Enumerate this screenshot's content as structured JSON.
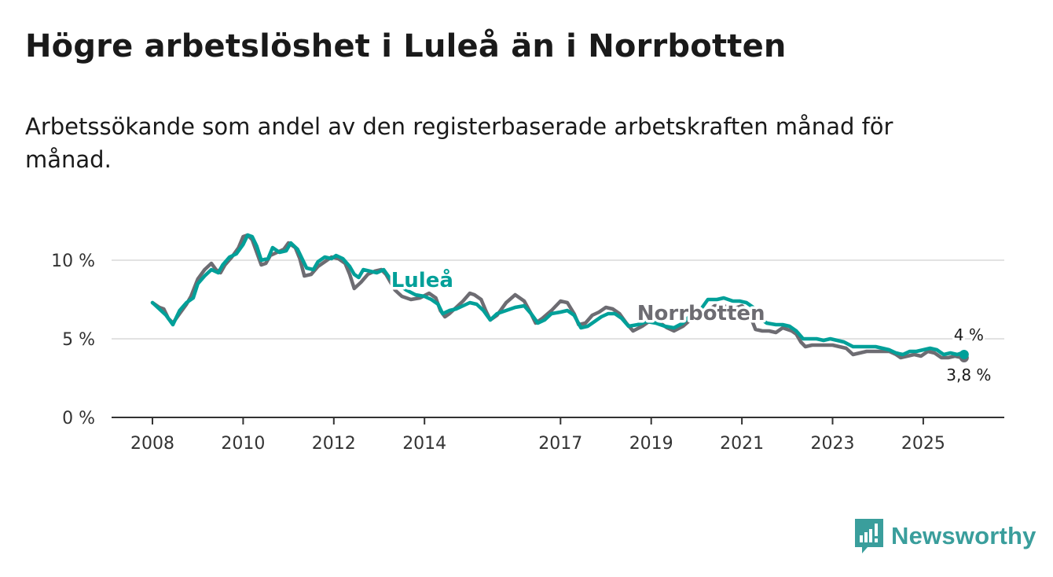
{
  "title": "Högre arbetslöshet i Luleå än i Norrbotten",
  "subtitle": "Arbetssökande som andel av den registerbaserade arbetskraften månad för månad.",
  "brand": {
    "name": "Newsworthy",
    "icon": "newsworthy-logo-icon",
    "color": "#3a9e9c"
  },
  "chart_data": {
    "type": "line",
    "title": "Högre arbetslöshet i Luleå än i Norrbotten",
    "xlabel": "",
    "ylabel": "",
    "xlim": [
      2008,
      2026.1
    ],
    "ylim": [
      0,
      11.5
    ],
    "y_ticks": [
      {
        "value": 0,
        "label": "0 %"
      },
      {
        "value": 5,
        "label": "5 %"
      },
      {
        "value": 10,
        "label": "10 %"
      }
    ],
    "x_ticks": [
      {
        "value": 2008,
        "label": "2008"
      },
      {
        "value": 2010,
        "label": "2010"
      },
      {
        "value": 2012,
        "label": "2012"
      },
      {
        "value": 2014,
        "label": "2014"
      },
      {
        "value": 2017,
        "label": "2017"
      },
      {
        "value": 2019,
        "label": "2019"
      },
      {
        "value": 2021,
        "label": "2021"
      },
      {
        "value": 2023,
        "label": "2023"
      },
      {
        "value": 2025,
        "label": "2025"
      }
    ],
    "grid": true,
    "series": [
      {
        "name": "Norrbotten",
        "color": "#6d6c72",
        "end_label": "3,8 %",
        "points": [
          [
            2008.0,
            7.3
          ],
          [
            2008.15,
            7.0
          ],
          [
            2008.25,
            6.9
          ],
          [
            2008.35,
            6.3
          ],
          [
            2008.45,
            6.0
          ],
          [
            2008.6,
            6.6
          ],
          [
            2008.75,
            7.2
          ],
          [
            2008.85,
            7.7
          ],
          [
            2009.0,
            8.8
          ],
          [
            2009.15,
            9.4
          ],
          [
            2009.3,
            9.8
          ],
          [
            2009.4,
            9.4
          ],
          [
            2009.5,
            9.2
          ],
          [
            2009.6,
            9.7
          ],
          [
            2009.75,
            10.2
          ],
          [
            2009.9,
            10.8
          ],
          [
            2010.0,
            11.5
          ],
          [
            2010.1,
            11.6
          ],
          [
            2010.2,
            11.3
          ],
          [
            2010.3,
            10.5
          ],
          [
            2010.4,
            9.7
          ],
          [
            2010.5,
            9.8
          ],
          [
            2010.6,
            10.3
          ],
          [
            2010.75,
            10.5
          ],
          [
            2010.9,
            10.7
          ],
          [
            2011.0,
            11.1
          ],
          [
            2011.15,
            10.8
          ],
          [
            2011.25,
            10.1
          ],
          [
            2011.35,
            9.0
          ],
          [
            2011.5,
            9.1
          ],
          [
            2011.65,
            9.6
          ],
          [
            2011.8,
            9.9
          ],
          [
            2011.95,
            10.2
          ],
          [
            2012.1,
            10.1
          ],
          [
            2012.25,
            9.8
          ],
          [
            2012.35,
            9.1
          ],
          [
            2012.45,
            8.2
          ],
          [
            2012.6,
            8.6
          ],
          [
            2012.75,
            9.1
          ],
          [
            2012.9,
            9.3
          ],
          [
            2013.05,
            9.4
          ],
          [
            2013.15,
            9.1
          ],
          [
            2013.35,
            8.1
          ],
          [
            2013.5,
            7.7
          ],
          [
            2013.7,
            7.5
          ],
          [
            2013.9,
            7.6
          ],
          [
            2014.1,
            7.9
          ],
          [
            2014.25,
            7.6
          ],
          [
            2014.35,
            6.8
          ],
          [
            2014.45,
            6.4
          ],
          [
            2014.55,
            6.6
          ],
          [
            2014.7,
            7.0
          ],
          [
            2014.85,
            7.4
          ],
          [
            2015.0,
            7.9
          ],
          [
            2015.1,
            7.8
          ],
          [
            2015.25,
            7.5
          ],
          [
            2015.35,
            6.8
          ],
          [
            2015.45,
            6.2
          ],
          [
            2015.6,
            6.5
          ],
          [
            2015.8,
            7.3
          ],
          [
            2016.0,
            7.8
          ],
          [
            2016.2,
            7.4
          ],
          [
            2016.35,
            6.6
          ],
          [
            2016.45,
            6.0
          ],
          [
            2016.6,
            6.3
          ],
          [
            2016.8,
            6.8
          ],
          [
            2017.0,
            7.4
          ],
          [
            2017.15,
            7.3
          ],
          [
            2017.3,
            6.6
          ],
          [
            2017.4,
            5.9
          ],
          [
            2017.55,
            6.0
          ],
          [
            2017.7,
            6.5
          ],
          [
            2017.85,
            6.7
          ],
          [
            2018.0,
            7.0
          ],
          [
            2018.15,
            6.9
          ],
          [
            2018.3,
            6.6
          ],
          [
            2018.45,
            6.0
          ],
          [
            2018.6,
            5.5
          ],
          [
            2018.8,
            5.8
          ],
          [
            2019.0,
            6.2
          ],
          [
            2019.2,
            6.0
          ],
          [
            2019.35,
            5.7
          ],
          [
            2019.5,
            5.5
          ],
          [
            2019.7,
            5.8
          ],
          [
            2019.9,
            6.3
          ],
          [
            2020.1,
            6.5
          ],
          [
            2020.25,
            6.8
          ],
          [
            2020.4,
            7.1
          ],
          [
            2020.6,
            7.1
          ],
          [
            2020.8,
            6.9
          ],
          [
            2021.0,
            7.1
          ],
          [
            2021.15,
            6.7
          ],
          [
            2021.3,
            5.6
          ],
          [
            2021.45,
            5.5
          ],
          [
            2021.6,
            5.5
          ],
          [
            2021.75,
            5.4
          ],
          [
            2021.9,
            5.7
          ],
          [
            2022.1,
            5.5
          ],
          [
            2022.2,
            5.3
          ],
          [
            2022.3,
            4.8
          ],
          [
            2022.4,
            4.5
          ],
          [
            2022.55,
            4.6
          ],
          [
            2022.7,
            4.6
          ],
          [
            2022.85,
            4.6
          ],
          [
            2023.0,
            4.6
          ],
          [
            2023.15,
            4.5
          ],
          [
            2023.3,
            4.4
          ],
          [
            2023.45,
            4.0
          ],
          [
            2023.6,
            4.1
          ],
          [
            2023.75,
            4.2
          ],
          [
            2023.9,
            4.2
          ],
          [
            2024.1,
            4.2
          ],
          [
            2024.25,
            4.2
          ],
          [
            2024.4,
            4.0
          ],
          [
            2024.5,
            3.8
          ],
          [
            2024.65,
            3.9
          ],
          [
            2024.8,
            4.0
          ],
          [
            2024.95,
            3.9
          ],
          [
            2025.1,
            4.2
          ],
          [
            2025.25,
            4.1
          ],
          [
            2025.4,
            3.8
          ],
          [
            2025.55,
            3.8
          ],
          [
            2025.7,
            3.9
          ],
          [
            2025.85,
            3.8
          ],
          [
            2025.9,
            3.8
          ]
        ]
      },
      {
        "name": "Luleå",
        "color": "#00a099",
        "end_label": "4 %",
        "points": [
          [
            2008.0,
            7.3
          ],
          [
            2008.15,
            6.9
          ],
          [
            2008.3,
            6.5
          ],
          [
            2008.45,
            5.9
          ],
          [
            2008.6,
            6.8
          ],
          [
            2008.75,
            7.3
          ],
          [
            2008.9,
            7.6
          ],
          [
            2009.0,
            8.5
          ],
          [
            2009.15,
            9.0
          ],
          [
            2009.3,
            9.4
          ],
          [
            2009.45,
            9.2
          ],
          [
            2009.55,
            9.7
          ],
          [
            2009.7,
            10.2
          ],
          [
            2009.85,
            10.4
          ],
          [
            2010.0,
            11.0
          ],
          [
            2010.1,
            11.6
          ],
          [
            2010.2,
            11.5
          ],
          [
            2010.3,
            10.9
          ],
          [
            2010.4,
            10.0
          ],
          [
            2010.55,
            10.1
          ],
          [
            2010.65,
            10.8
          ],
          [
            2010.8,
            10.5
          ],
          [
            2010.95,
            10.6
          ],
          [
            2011.05,
            11.1
          ],
          [
            2011.2,
            10.7
          ],
          [
            2011.3,
            10.1
          ],
          [
            2011.4,
            9.5
          ],
          [
            2011.55,
            9.4
          ],
          [
            2011.65,
            9.9
          ],
          [
            2011.8,
            10.2
          ],
          [
            2011.95,
            10.1
          ],
          [
            2012.05,
            10.3
          ],
          [
            2012.2,
            10.1
          ],
          [
            2012.35,
            9.6
          ],
          [
            2012.45,
            9.1
          ],
          [
            2012.55,
            8.9
          ],
          [
            2012.65,
            9.4
          ],
          [
            2012.8,
            9.3
          ],
          [
            2012.95,
            9.2
          ],
          [
            2013.1,
            9.4
          ],
          [
            2013.25,
            8.8
          ],
          [
            2013.4,
            8.5
          ],
          [
            2013.6,
            8.1
          ],
          [
            2013.8,
            7.8
          ],
          [
            2014.0,
            7.7
          ],
          [
            2014.15,
            7.5
          ],
          [
            2014.3,
            7.2
          ],
          [
            2014.4,
            6.6
          ],
          [
            2014.55,
            6.8
          ],
          [
            2014.7,
            6.9
          ],
          [
            2014.85,
            7.1
          ],
          [
            2015.0,
            7.3
          ],
          [
            2015.15,
            7.2
          ],
          [
            2015.3,
            6.8
          ],
          [
            2015.45,
            6.2
          ],
          [
            2015.6,
            6.6
          ],
          [
            2015.8,
            6.8
          ],
          [
            2016.0,
            7.0
          ],
          [
            2016.2,
            7.1
          ],
          [
            2016.35,
            6.6
          ],
          [
            2016.5,
            6.0
          ],
          [
            2016.65,
            6.2
          ],
          [
            2016.8,
            6.6
          ],
          [
            2017.0,
            6.7
          ],
          [
            2017.15,
            6.8
          ],
          [
            2017.3,
            6.5
          ],
          [
            2017.45,
            5.7
          ],
          [
            2017.6,
            5.8
          ],
          [
            2017.75,
            6.1
          ],
          [
            2017.9,
            6.4
          ],
          [
            2018.05,
            6.6
          ],
          [
            2018.2,
            6.6
          ],
          [
            2018.35,
            6.3
          ],
          [
            2018.5,
            5.8
          ],
          [
            2018.7,
            5.9
          ],
          [
            2018.9,
            6.1
          ],
          [
            2019.1,
            6.0
          ],
          [
            2019.3,
            5.8
          ],
          [
            2019.5,
            5.7
          ],
          [
            2019.7,
            6.0
          ],
          [
            2019.9,
            6.6
          ],
          [
            2020.1,
            6.9
          ],
          [
            2020.25,
            7.5
          ],
          [
            2020.45,
            7.5
          ],
          [
            2020.6,
            7.6
          ],
          [
            2020.8,
            7.4
          ],
          [
            2020.95,
            7.4
          ],
          [
            2021.1,
            7.3
          ],
          [
            2021.25,
            7.0
          ],
          [
            2021.4,
            6.3
          ],
          [
            2021.55,
            6.0
          ],
          [
            2021.75,
            5.9
          ],
          [
            2021.9,
            5.9
          ],
          [
            2022.05,
            5.8
          ],
          [
            2022.2,
            5.5
          ],
          [
            2022.35,
            5.0
          ],
          [
            2022.5,
            5.0
          ],
          [
            2022.65,
            5.0
          ],
          [
            2022.8,
            4.9
          ],
          [
            2022.95,
            5.0
          ],
          [
            2023.1,
            4.9
          ],
          [
            2023.25,
            4.8
          ],
          [
            2023.45,
            4.5
          ],
          [
            2023.6,
            4.5
          ],
          [
            2023.8,
            4.5
          ],
          [
            2023.95,
            4.5
          ],
          [
            2024.1,
            4.4
          ],
          [
            2024.25,
            4.3
          ],
          [
            2024.4,
            4.1
          ],
          [
            2024.55,
            4.0
          ],
          [
            2024.7,
            4.2
          ],
          [
            2024.85,
            4.2
          ],
          [
            2025.0,
            4.3
          ],
          [
            2025.15,
            4.4
          ],
          [
            2025.3,
            4.3
          ],
          [
            2025.45,
            4.0
          ],
          [
            2025.6,
            4.1
          ],
          [
            2025.75,
            4.0
          ],
          [
            2025.85,
            4.1
          ],
          [
            2025.9,
            4.0
          ]
        ]
      }
    ],
    "annotations": [
      {
        "text": "Luleå",
        "series": "Luleå",
        "x": 2013.95,
        "y": 8.3
      },
      {
        "text": "Norrbotten",
        "series": "Norrbotten",
        "x": 2020.1,
        "y": 6.2
      }
    ]
  }
}
